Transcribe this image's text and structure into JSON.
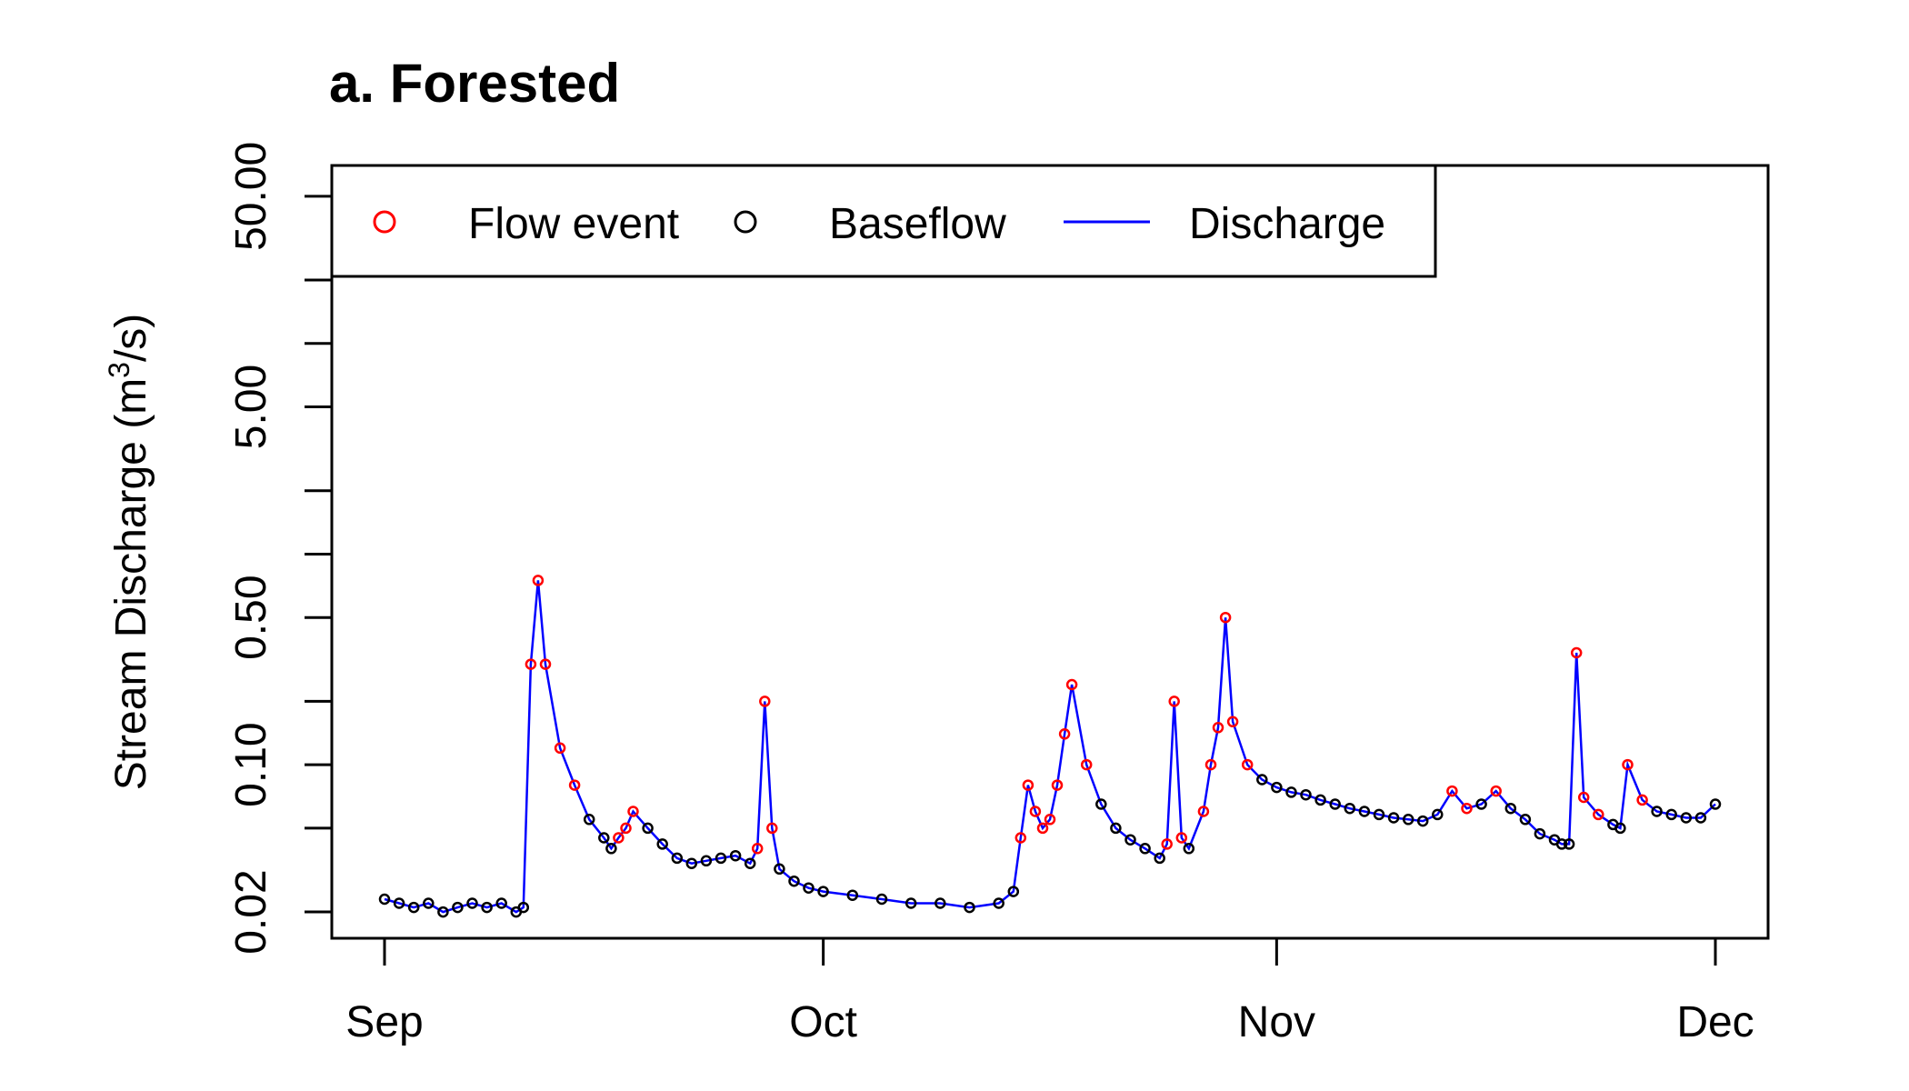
{
  "chart_data": {
    "type": "line",
    "title": "a. Forested",
    "ylabel": {
      "prefix": "Stream Discharge (m",
      "sup": "3",
      "suffix": "/s)"
    },
    "xlabel": "",
    "y_scale": "log",
    "ylim": [
      0.015,
      70
    ],
    "y_ticks": [
      0.02,
      0.05,
      0.1,
      0.2,
      0.5,
      1,
      2,
      5,
      10,
      20,
      50
    ],
    "y_tick_labels": [
      {
        "value": 0.02,
        "label": "0.02"
      },
      {
        "value": 0.1,
        "label": "0.10"
      },
      {
        "value": 0.5,
        "label": "0.50"
      },
      {
        "value": 5,
        "label": "5.00"
      },
      {
        "value": 50,
        "label": "50.00"
      }
    ],
    "x_ticks": [
      {
        "date": "Sep 1",
        "label": "Sep"
      },
      {
        "date": "Oct 1",
        "label": "Oct"
      },
      {
        "date": "Nov 1",
        "label": "Nov"
      },
      {
        "date": "Dec 1",
        "label": "Dec"
      }
    ],
    "x_range": [
      "Sep 1",
      "Dec 1"
    ],
    "legend": {
      "position": "top-left",
      "entries": [
        {
          "label": "Flow event",
          "symbol": "circle",
          "color": "#ff0000"
        },
        {
          "label": "Baseflow",
          "symbol": "circle",
          "color": "#000000"
        },
        {
          "label": "Discharge",
          "symbol": "line",
          "color": "#0000ff"
        }
      ]
    },
    "colors": {
      "flow_event": "#ff0000",
      "baseflow": "#000000",
      "discharge": "#0000ff"
    },
    "series": [
      {
        "name": "Discharge",
        "x": [
          "Sep 1",
          "Sep 2",
          "Sep 3",
          "Sep 4",
          "Sep 5",
          "Sep 6",
          "Sep 7",
          "Sep 8",
          "Sep 9",
          "Sep 10",
          "Sep 10.5",
          "Sep 11",
          "Sep 11.5",
          "Sep 12",
          "Sep 13",
          "Sep 14",
          "Sep 15",
          "Sep 16",
          "Sep 16.5",
          "Sep 17",
          "Sep 17.5",
          "Sep 18",
          "Sep 19",
          "Sep 20",
          "Sep 21",
          "Sep 22",
          "Sep 23",
          "Sep 24",
          "Sep 25",
          "Sep 26",
          "Sep 26.5",
          "Sep 27",
          "Sep 27.5",
          "Sep 28",
          "Sep 29",
          "Sep 30",
          "Oct 1",
          "Oct 3",
          "Oct 5",
          "Oct 7",
          "Oct 9",
          "Oct 11",
          "Oct 13",
          "Oct 14",
          "Oct 14.5",
          "Oct 15",
          "Oct 15.5",
          "Oct 16",
          "Oct 16.5",
          "Oct 17",
          "Oct 17.5",
          "Oct 18",
          "Oct 19",
          "Oct 20",
          "Oct 21",
          "Oct 22",
          "Oct 23",
          "Oct 24",
          "Oct 24.5",
          "Oct 25",
          "Oct 25.5",
          "Oct 26",
          "Oct 27",
          "Oct 27.5",
          "Oct 28",
          "Oct 28.5",
          "Oct 29",
          "Oct 30",
          "Oct 31",
          "Nov 1",
          "Nov 2",
          "Nov 3",
          "Nov 4",
          "Nov 5",
          "Nov 6",
          "Nov 7",
          "Nov 8",
          "Nov 9",
          "Nov 10",
          "Nov 11",
          "Nov 12",
          "Nov 13",
          "Nov 14",
          "Nov 15",
          "Nov 16",
          "Nov 17",
          "Nov 18",
          "Nov 19",
          "Nov 20",
          "Nov 20.5",
          "Nov 21",
          "Nov 21.5",
          "Nov 22",
          "Nov 23",
          "Nov 24",
          "Nov 24.5",
          "Nov 25",
          "Nov 26",
          "Nov 27",
          "Nov 28",
          "Nov 29",
          "Nov 30",
          "Dec 1"
        ],
        "y": [
          0.023,
          0.022,
          0.021,
          0.022,
          0.02,
          0.021,
          0.022,
          0.021,
          0.022,
          0.02,
          0.021,
          0.3,
          0.75,
          0.3,
          0.12,
          0.08,
          0.055,
          0.045,
          0.04,
          0.045,
          0.05,
          0.06,
          0.05,
          0.042,
          0.036,
          0.034,
          0.035,
          0.036,
          0.037,
          0.034,
          0.04,
          0.2,
          0.05,
          0.032,
          0.028,
          0.026,
          0.025,
          0.024,
          0.023,
          0.022,
          0.022,
          0.021,
          0.022,
          0.025,
          0.045,
          0.08,
          0.06,
          0.05,
          0.055,
          0.08,
          0.14,
          0.24,
          0.1,
          0.065,
          0.05,
          0.044,
          0.04,
          0.036,
          0.042,
          0.2,
          0.045,
          0.04,
          0.06,
          0.1,
          0.15,
          0.5,
          0.16,
          0.1,
          0.085,
          0.078,
          0.074,
          0.072,
          0.068,
          0.065,
          0.062,
          0.06,
          0.058,
          0.056,
          0.055,
          0.054,
          0.058,
          0.075,
          0.062,
          0.065,
          0.075,
          0.062,
          0.055,
          0.047,
          0.044,
          0.042,
          0.042,
          0.34,
          0.07,
          0.058,
          0.052,
          0.05,
          0.1,
          0.068,
          0.06,
          0.058,
          0.056,
          0.056,
          0.065
        ],
        "event": [
          0,
          0,
          0,
          0,
          0,
          0,
          0,
          0,
          0,
          0,
          0,
          1,
          1,
          1,
          1,
          1,
          0,
          0,
          0,
          1,
          1,
          1,
          0,
          0,
          0,
          0,
          0,
          0,
          0,
          0,
          1,
          1,
          1,
          0,
          0,
          0,
          0,
          0,
          0,
          0,
          0,
          0,
          0,
          0,
          1,
          1,
          1,
          1,
          1,
          1,
          1,
          1,
          1,
          0,
          0,
          0,
          0,
          0,
          1,
          1,
          1,
          0,
          1,
          1,
          1,
          1,
          1,
          1,
          0,
          0,
          0,
          0,
          0,
          0,
          0,
          0,
          0,
          0,
          0,
          0,
          0,
          1,
          1,
          0,
          1,
          0,
          0,
          0,
          0,
          0,
          0,
          1,
          1,
          1,
          0,
          0,
          1,
          1,
          0,
          0,
          0,
          0,
          0
        ]
      }
    ]
  }
}
